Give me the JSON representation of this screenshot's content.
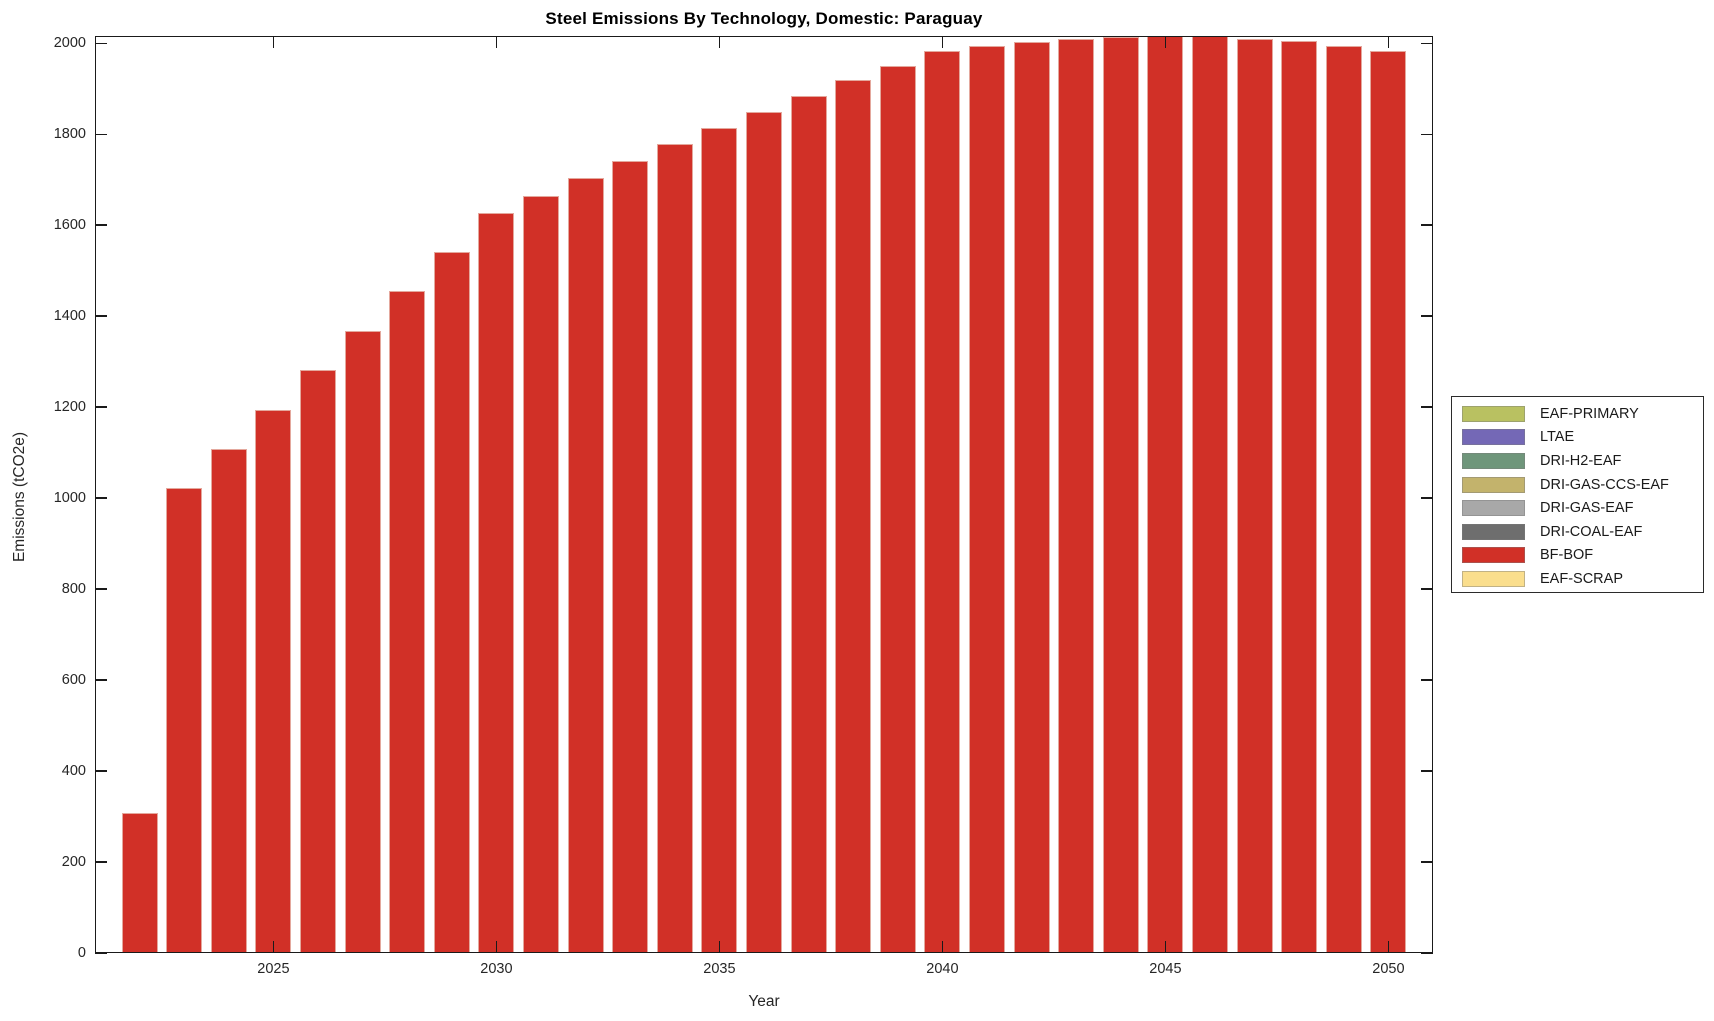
{
  "title": "Steel Emissions By Technology, Domestic: Paraguay",
  "chart_data": {
    "type": "bar",
    "title": "Steel Emissions By Technology, Domestic: Paraguay",
    "xlabel": "Year",
    "ylabel": "Emissions (tCO2e)",
    "grid": false,
    "background": "#ffffff",
    "axis_color": "#1a1a1a",
    "bar_color": "#d13027",
    "xlim": [
      2021,
      2051
    ],
    "ylim": [
      0,
      2016
    ],
    "xticks": [
      2025,
      2030,
      2035,
      2040,
      2045,
      2050
    ],
    "yticks": [
      0,
      200,
      400,
      600,
      800,
      1000,
      1200,
      1400,
      1600,
      1800,
      2000
    ],
    "x": [
      2022,
      2023,
      2024,
      2025,
      2026,
      2027,
      2028,
      2029,
      2030,
      2031,
      2032,
      2033,
      2034,
      2035,
      2036,
      2037,
      2038,
      2039,
      2040,
      2041,
      2042,
      2043,
      2044,
      2045,
      2046,
      2047,
      2048,
      2049,
      2050
    ],
    "series": [
      {
        "name": "BF-BOF",
        "color": "#d13027",
        "values": [
          308,
          1022,
          1108,
          1194,
          1282,
          1368,
          1455,
          1542,
          1626,
          1664,
          1703,
          1742,
          1778,
          1813,
          1848,
          1885,
          1919,
          1951,
          1982,
          1993,
          2002,
          2009,
          2013,
          2016,
          2015,
          2010,
          2006,
          1995,
          1982
        ]
      }
    ],
    "legend_position": "right-outside",
    "legend": [
      {
        "label": "EAF-PRIMARY",
        "color": "#b9c161"
      },
      {
        "label": "LTAE",
        "color": "#7468b6"
      },
      {
        "label": "DRI-H2-EAF",
        "color": "#6f967b"
      },
      {
        "label": "DRI-GAS-CCS-EAF",
        "color": "#c3b36c"
      },
      {
        "label": "DRI-GAS-EAF",
        "color": "#a8a8a8"
      },
      {
        "label": "DRI-COAL-EAF",
        "color": "#6e6e6e"
      },
      {
        "label": "BF-BOF",
        "color": "#d13027"
      },
      {
        "label": "EAF-SCRAP",
        "color": "#fade8d"
      }
    ]
  }
}
